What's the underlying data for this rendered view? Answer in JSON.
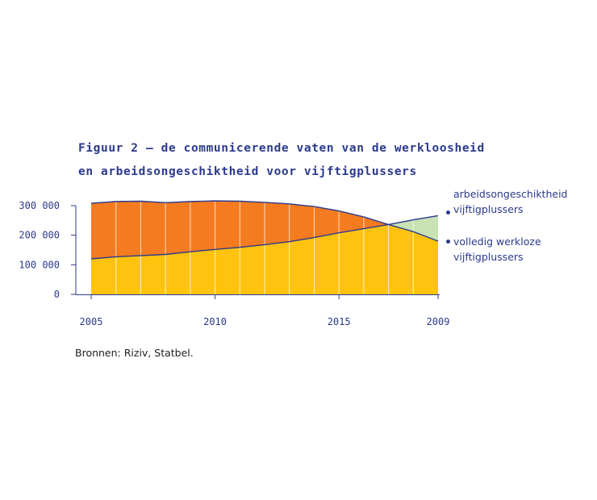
{
  "title": {
    "line1": "Figuur 2 – de communicerende vaten van de werkloosheid",
    "line2": "en arbeidsongeschiktheid voor vijftigplussers"
  },
  "source": "Bronnen: Riziv, Statbel.",
  "chart_data": {
    "type": "area",
    "title": "Figuur 2 – de communicerende vaten van de werkloosheid en arbeidsongeschiktheid voor vijftigplussers",
    "x": [
      2005,
      2006,
      2007,
      2008,
      2009,
      2010,
      2011,
      2012,
      2013,
      2014,
      2015,
      2016,
      2017,
      2018,
      2019
    ],
    "x_tick_labels": [
      "2005",
      "2010",
      "2015",
      "2009"
    ],
    "ylim": [
      0,
      300000
    ],
    "y_ticks": [
      0,
      100000,
      200000,
      300000
    ],
    "y_tick_labels": [
      "0",
      "100 000",
      "200 000",
      "300 000"
    ],
    "grid": false,
    "series": [
      {
        "name": "arbeidsongeschiktheid vijftigplussers",
        "name_lines": [
          "arbeidsongeschiktheid",
          "vijftigplussers"
        ],
        "color": "#ffc20e",
        "values": [
          120000,
          127000,
          131000,
          135000,
          144000,
          152000,
          159000,
          168000,
          178000,
          192000,
          208000,
          222000,
          236000,
          252000,
          266000
        ]
      },
      {
        "name": "volledig werkloze vijftigplussers",
        "name_lines": [
          "volledig werkloze",
          "vijftigplussers"
        ],
        "color": "#f47b20",
        "values": [
          308000,
          314000,
          315000,
          310000,
          314000,
          316000,
          315000,
          311000,
          306000,
          297000,
          282000,
          262000,
          236000,
          212000,
          180000
        ]
      }
    ],
    "crossover_color": "#c8e2b4",
    "line_color": "#2b3a8c"
  }
}
